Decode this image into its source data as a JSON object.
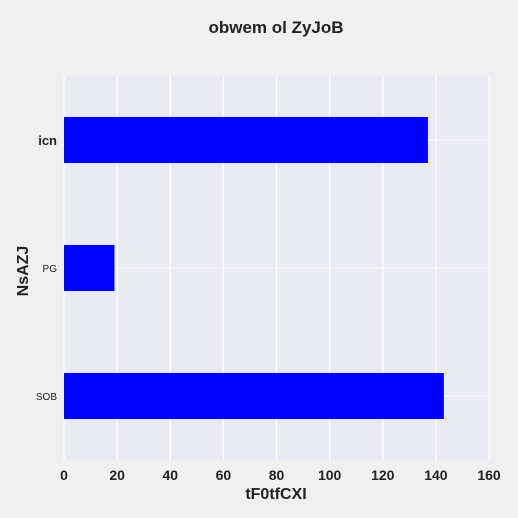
{
  "chart_data": {
    "type": "bar",
    "orientation": "horizontal",
    "title": "obwem ol ZyJoB",
    "xlabel": "tF0tfCXI",
    "ylabel": "NsAZJ",
    "categories": [
      "icn",
      "PG",
      "SOB"
    ],
    "values": [
      137,
      19,
      143
    ],
    "xlim": [
      0,
      160
    ],
    "x_ticks": [
      "0",
      "20",
      "40",
      "60",
      "80",
      "100",
      "120",
      "140",
      "160"
    ],
    "bar_color": "#0000ff",
    "plot_background": "#eaeaf2",
    "grid": true,
    "legend": "none"
  }
}
